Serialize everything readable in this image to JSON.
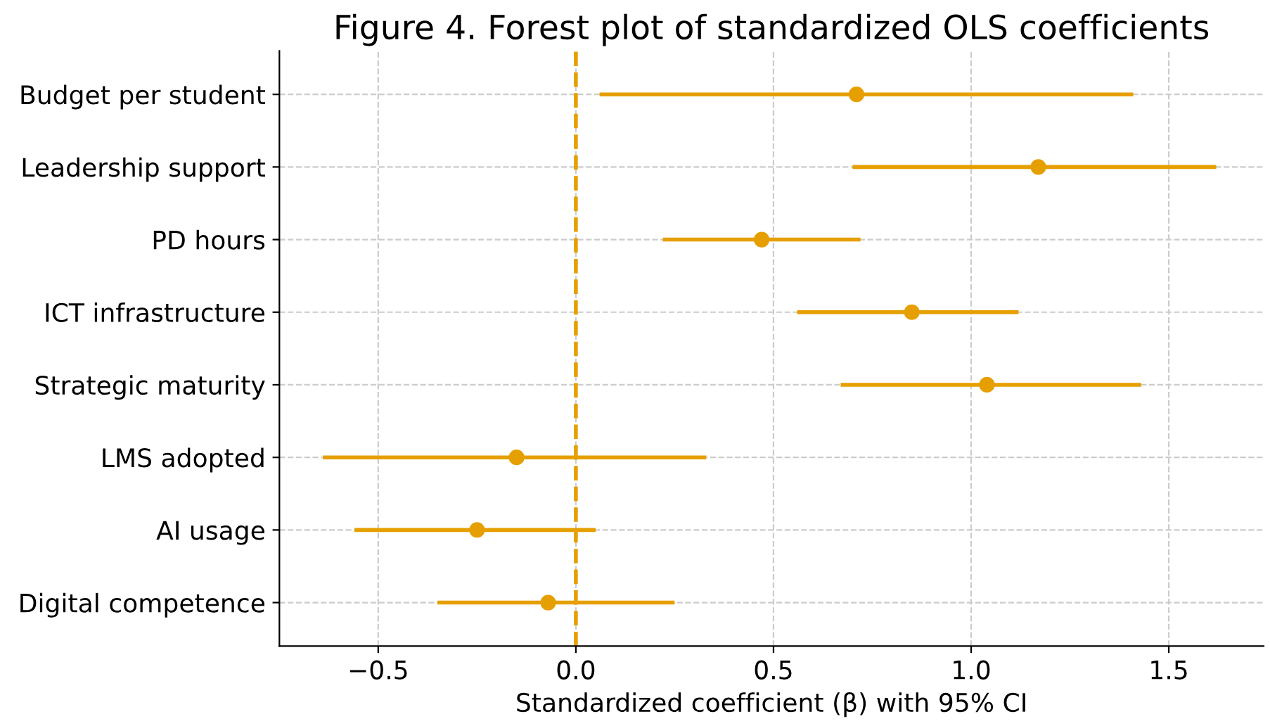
{
  "chart_data": {
    "type": "scatter",
    "title": "Figure 4. Forest plot of standardized OLS coefficients",
    "xlabel": "Standardized coefficient (β) with 95% CI",
    "orientation": "horizontal",
    "categories": [
      "Budget per student",
      "Leadership support",
      "PD hours",
      "ICT infrastructure",
      "Strategic maturity",
      "LMS adopted",
      "AI usage",
      "Digital competence"
    ],
    "values": [
      0.71,
      1.17,
      0.47,
      0.85,
      1.04,
      -0.15,
      -0.25,
      -0.07
    ],
    "errors": [
      [
        0.06,
        1.41
      ],
      [
        0.7,
        1.62
      ],
      [
        0.22,
        0.72
      ],
      [
        0.56,
        1.12
      ],
      [
        0.67,
        1.43
      ],
      [
        -0.64,
        0.33
      ],
      [
        -0.56,
        0.05
      ],
      [
        -0.35,
        0.25
      ]
    ],
    "color": "#e69f00",
    "marker": "circle",
    "xlim": [
      -0.75,
      1.74
    ],
    "xticks": [
      {
        "value": -0.5,
        "label": "−0.5"
      },
      {
        "value": 0,
        "label": "0.0"
      },
      0.5,
      {
        "value": 1,
        "label": "1.0"
      },
      1.5
    ],
    "ref_lines": [
      {
        "axis": "x",
        "value": 0,
        "color": "#e69f00",
        "line_style": "dashed"
      }
    ],
    "grid": true
  }
}
